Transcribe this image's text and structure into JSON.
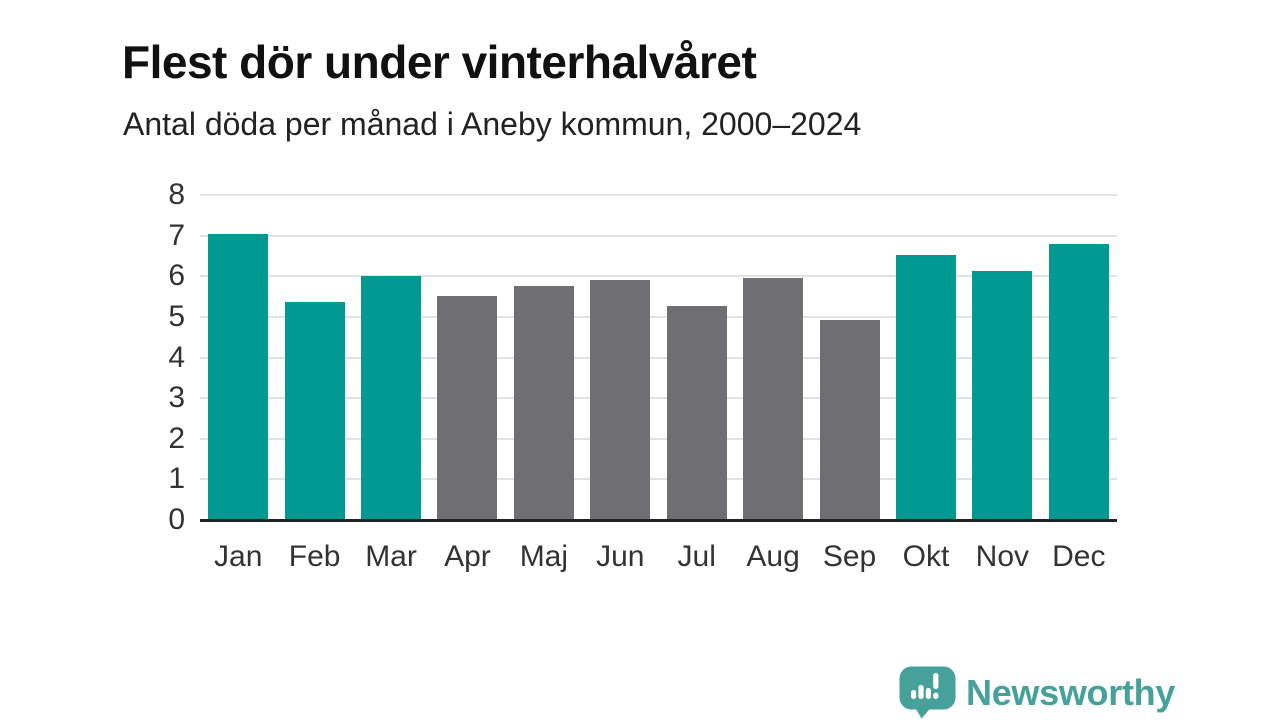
{
  "header": {
    "title": "Flest dör under vinterhalvåret",
    "subtitle": "Antal döda per månad i Aneby kommun, 2000–2024"
  },
  "chart_data": {
    "type": "bar",
    "categories": [
      "Jan",
      "Feb",
      "Mar",
      "Apr",
      "Maj",
      "Jun",
      "Jul",
      "Aug",
      "Sep",
      "Okt",
      "Nov",
      "Dec"
    ],
    "values": [
      7.04,
      5.36,
      6.0,
      5.52,
      5.76,
      5.92,
      5.28,
      5.96,
      4.92,
      6.52,
      6.12,
      6.8
    ],
    "highlighted": [
      true,
      true,
      true,
      false,
      false,
      false,
      false,
      false,
      false,
      true,
      true,
      true
    ],
    "title": "Flest dör under vinterhalvåret",
    "subtitle": "Antal döda per månad i Aneby kommun, 2000–2024",
    "xlabel": "",
    "ylabel": "",
    "ylim": [
      0,
      8
    ],
    "yticks": [
      0,
      1,
      2,
      3,
      4,
      5,
      6,
      7,
      8
    ],
    "grid": true,
    "legend": false,
    "colors": {
      "highlight": "#009a93",
      "default": "#6e6e73",
      "gridline": "#e2e2e2",
      "axis": "#222222",
      "tick_text": "#333333"
    }
  },
  "footer": {
    "brand": "Newsworthy",
    "brand_color": "#46a19a",
    "logo_icon": "newsworthy-speech-bubble-chart-icon"
  }
}
